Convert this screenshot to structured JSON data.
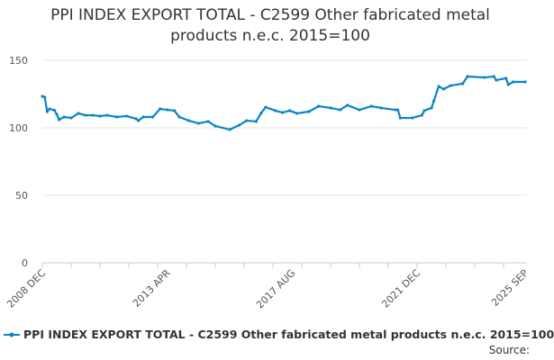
{
  "chart_data": {
    "type": "line",
    "title": "PPI INDEX EXPORT TOTAL - C2599 Other fabricated metal products n.e.c. 2015=100",
    "title_lines": [
      "PPI INDEX EXPORT TOTAL - C2599 Other fabricated metal",
      "products n.e.c. 2015=100"
    ],
    "xlabel": "",
    "ylabel": "",
    "ylim": [
      0,
      150
    ],
    "yticks": [
      "0",
      "50",
      "100",
      "150"
    ],
    "xlim": [
      "2008-12",
      "2025-09"
    ],
    "xticks": [
      "2008 DEC",
      "2013 APR",
      "2017 AUG",
      "2021 DEC",
      "2025 SEP"
    ],
    "grid": true,
    "legend_position": "bottom",
    "color": "#0b84c6",
    "series": [
      {
        "name": "PPI INDEX EXPORT TOTAL - C2599 Other fabricated metal products n.e.c. 2015=100",
        "x": [
          "2008-12",
          "2009-01",
          "2009-02",
          "2009-03",
          "2009-05",
          "2009-06",
          "2009-07",
          "2009-09",
          "2009-12",
          "2010-03",
          "2010-06",
          "2010-09",
          "2010-12",
          "2011-03",
          "2011-07",
          "2011-11",
          "2012-03",
          "2012-04",
          "2012-06",
          "2012-10",
          "2013-01",
          "2013-04",
          "2013-07",
          "2013-09",
          "2014-01",
          "2014-05",
          "2014-09",
          "2014-12",
          "2015-06",
          "2015-10",
          "2016-01",
          "2016-05",
          "2016-07",
          "2016-09",
          "2017-01",
          "2017-04",
          "2017-07",
          "2017-10",
          "2018-03",
          "2018-07",
          "2018-12",
          "2019-04",
          "2019-07",
          "2019-12",
          "2020-05",
          "2020-09",
          "2021-03",
          "2021-04",
          "2021-05",
          "2021-10",
          "2022-02",
          "2022-03",
          "2022-06",
          "2022-07",
          "2022-09",
          "2022-11",
          "2023-02",
          "2023-07",
          "2023-09",
          "2024-04",
          "2024-08",
          "2024-09",
          "2025-01",
          "2025-02",
          "2025-04",
          "2025-09"
        ],
        "y": [
          123.3,
          122.7,
          112,
          114,
          113,
          110,
          106,
          108,
          107.3,
          110.7,
          109.3,
          109.3,
          108.7,
          109.3,
          108,
          108.7,
          106.7,
          105.3,
          108,
          108,
          114,
          113.3,
          112.7,
          108,
          105.3,
          103.3,
          104.7,
          101.3,
          98.7,
          102,
          105.3,
          104.7,
          110.7,
          115.3,
          112.7,
          111.3,
          112.7,
          110.7,
          112,
          116,
          114.7,
          113.3,
          116.7,
          113.3,
          116,
          114.7,
          113.3,
          113.3,
          107.3,
          107.3,
          109.3,
          112.7,
          114.7,
          120,
          130.7,
          128.7,
          131.3,
          132.7,
          138,
          137.3,
          138,
          135.3,
          136.7,
          132,
          134,
          134
        ]
      }
    ]
  },
  "source_label": "Source:"
}
